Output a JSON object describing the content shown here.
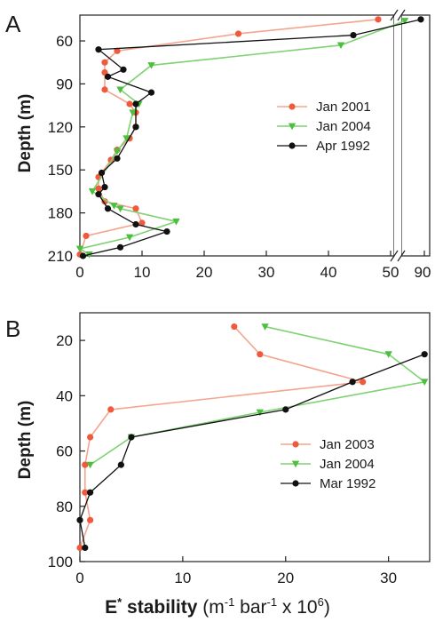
{
  "colors": {
    "red": "#f05a3c",
    "red_line": "#f4a58e",
    "green": "#4cbf3e",
    "green_line": "#7fd173",
    "black": "#111111"
  },
  "xlabel": {
    "main": "E",
    "star": "*",
    "word": "stability",
    "unit_open": "(m",
    "exp1": "-1",
    "bar": "bar",
    "exp2": "-1",
    "times": "x 10",
    "exp3": "6",
    "unit_close": ")"
  },
  "chart_data": [
    {
      "panel": "A",
      "type": "line",
      "ylabel": "Depth (m)",
      "ylim": [
        210,
        42
      ],
      "xlim": [
        0,
        50
      ],
      "yticks": [
        60,
        90,
        120,
        150,
        180,
        210
      ],
      "xticks": [
        0,
        10,
        20,
        30,
        40,
        50
      ],
      "axis_break": {
        "after": 50,
        "extra_tick_label": "90",
        "note": "broken x axis between 50 and 90"
      },
      "legend_position": "right-middle",
      "series": [
        {
          "name": "Jan 2001",
          "marker": "circle",
          "color": "red",
          "points": [
            [
              48,
              45
            ],
            [
              25.5,
              55
            ],
            [
              6,
              67
            ],
            [
              4,
              75
            ],
            [
              4,
              82
            ],
            [
              4,
              94
            ],
            [
              8,
              104
            ],
            [
              9,
              110
            ],
            [
              9,
              120
            ],
            [
              8,
              128
            ],
            [
              6,
              136
            ],
            [
              5,
              143
            ],
            [
              3,
              155
            ],
            [
              3,
              163
            ],
            [
              4,
              172
            ],
            [
              9,
              177
            ],
            [
              10,
              187
            ],
            [
              1,
              196
            ],
            [
              0,
              209
            ]
          ]
        },
        {
          "name": "Jan 2004",
          "marker": "triangle",
          "color": "green",
          "points": [
            [
              52,
              46
            ],
            [
              42,
              63
            ],
            [
              11.5,
              77
            ],
            [
              6.5,
              94
            ],
            [
              9.5,
              104
            ],
            [
              8.5,
              110
            ],
            [
              7.5,
              128
            ],
            [
              6,
              137
            ],
            [
              2,
              165
            ],
            [
              5.5,
              175
            ],
            [
              6.5,
              177
            ],
            [
              15.5,
              186
            ],
            [
              8,
              197
            ],
            [
              0,
              205
            ],
            [
              1.5,
              209
            ]
          ]
        },
        {
          "name": "Apr 1992",
          "marker": "circle",
          "color": "black",
          "points": [
            [
              55,
              45
            ],
            [
              44,
              56
            ],
            [
              3,
              66
            ],
            [
              7,
              80
            ],
            [
              4.5,
              85
            ],
            [
              11.5,
              96
            ],
            [
              9,
              104
            ],
            [
              9,
              120
            ],
            [
              6,
              142
            ],
            [
              3.5,
              152
            ],
            [
              4,
              162
            ],
            [
              3,
              167
            ],
            [
              4.5,
              177
            ],
            [
              9,
              188
            ],
            [
              14,
              193
            ],
            [
              6.5,
              204
            ],
            [
              0.5,
              210
            ]
          ]
        }
      ]
    },
    {
      "panel": "B",
      "type": "line",
      "ylabel": "Depth (m)",
      "ylim": [
        100,
        10
      ],
      "xlim": [
        0,
        34
      ],
      "yticks": [
        20,
        40,
        60,
        80,
        100
      ],
      "xticks": [
        0,
        10,
        20,
        30
      ],
      "legend_position": "right-middle",
      "series": [
        {
          "name": "Jan 2003",
          "marker": "circle",
          "color": "red",
          "points": [
            [
              15,
              15
            ],
            [
              17.5,
              25
            ],
            [
              27.5,
              35
            ],
            [
              3,
              45
            ],
            [
              1,
              55
            ],
            [
              0.5,
              65
            ],
            [
              0.5,
              75
            ],
            [
              1,
              85
            ],
            [
              0,
              95
            ]
          ]
        },
        {
          "name": "Jan 2004",
          "marker": "triangle",
          "color": "green",
          "points": [
            [
              18,
              15
            ],
            [
              30,
              25
            ],
            [
              33.5,
              35
            ],
            [
              17.5,
              46
            ],
            [
              5,
              55
            ],
            [
              1,
              65
            ]
          ]
        },
        {
          "name": "Mar 1992",
          "marker": "circle",
          "color": "black",
          "points": [
            [
              33.5,
              25
            ],
            [
              26.5,
              35
            ],
            [
              20,
              45
            ],
            [
              5,
              55
            ],
            [
              4,
              65
            ],
            [
              1,
              75
            ],
            [
              0,
              85
            ],
            [
              0.5,
              95
            ]
          ]
        }
      ]
    }
  ]
}
